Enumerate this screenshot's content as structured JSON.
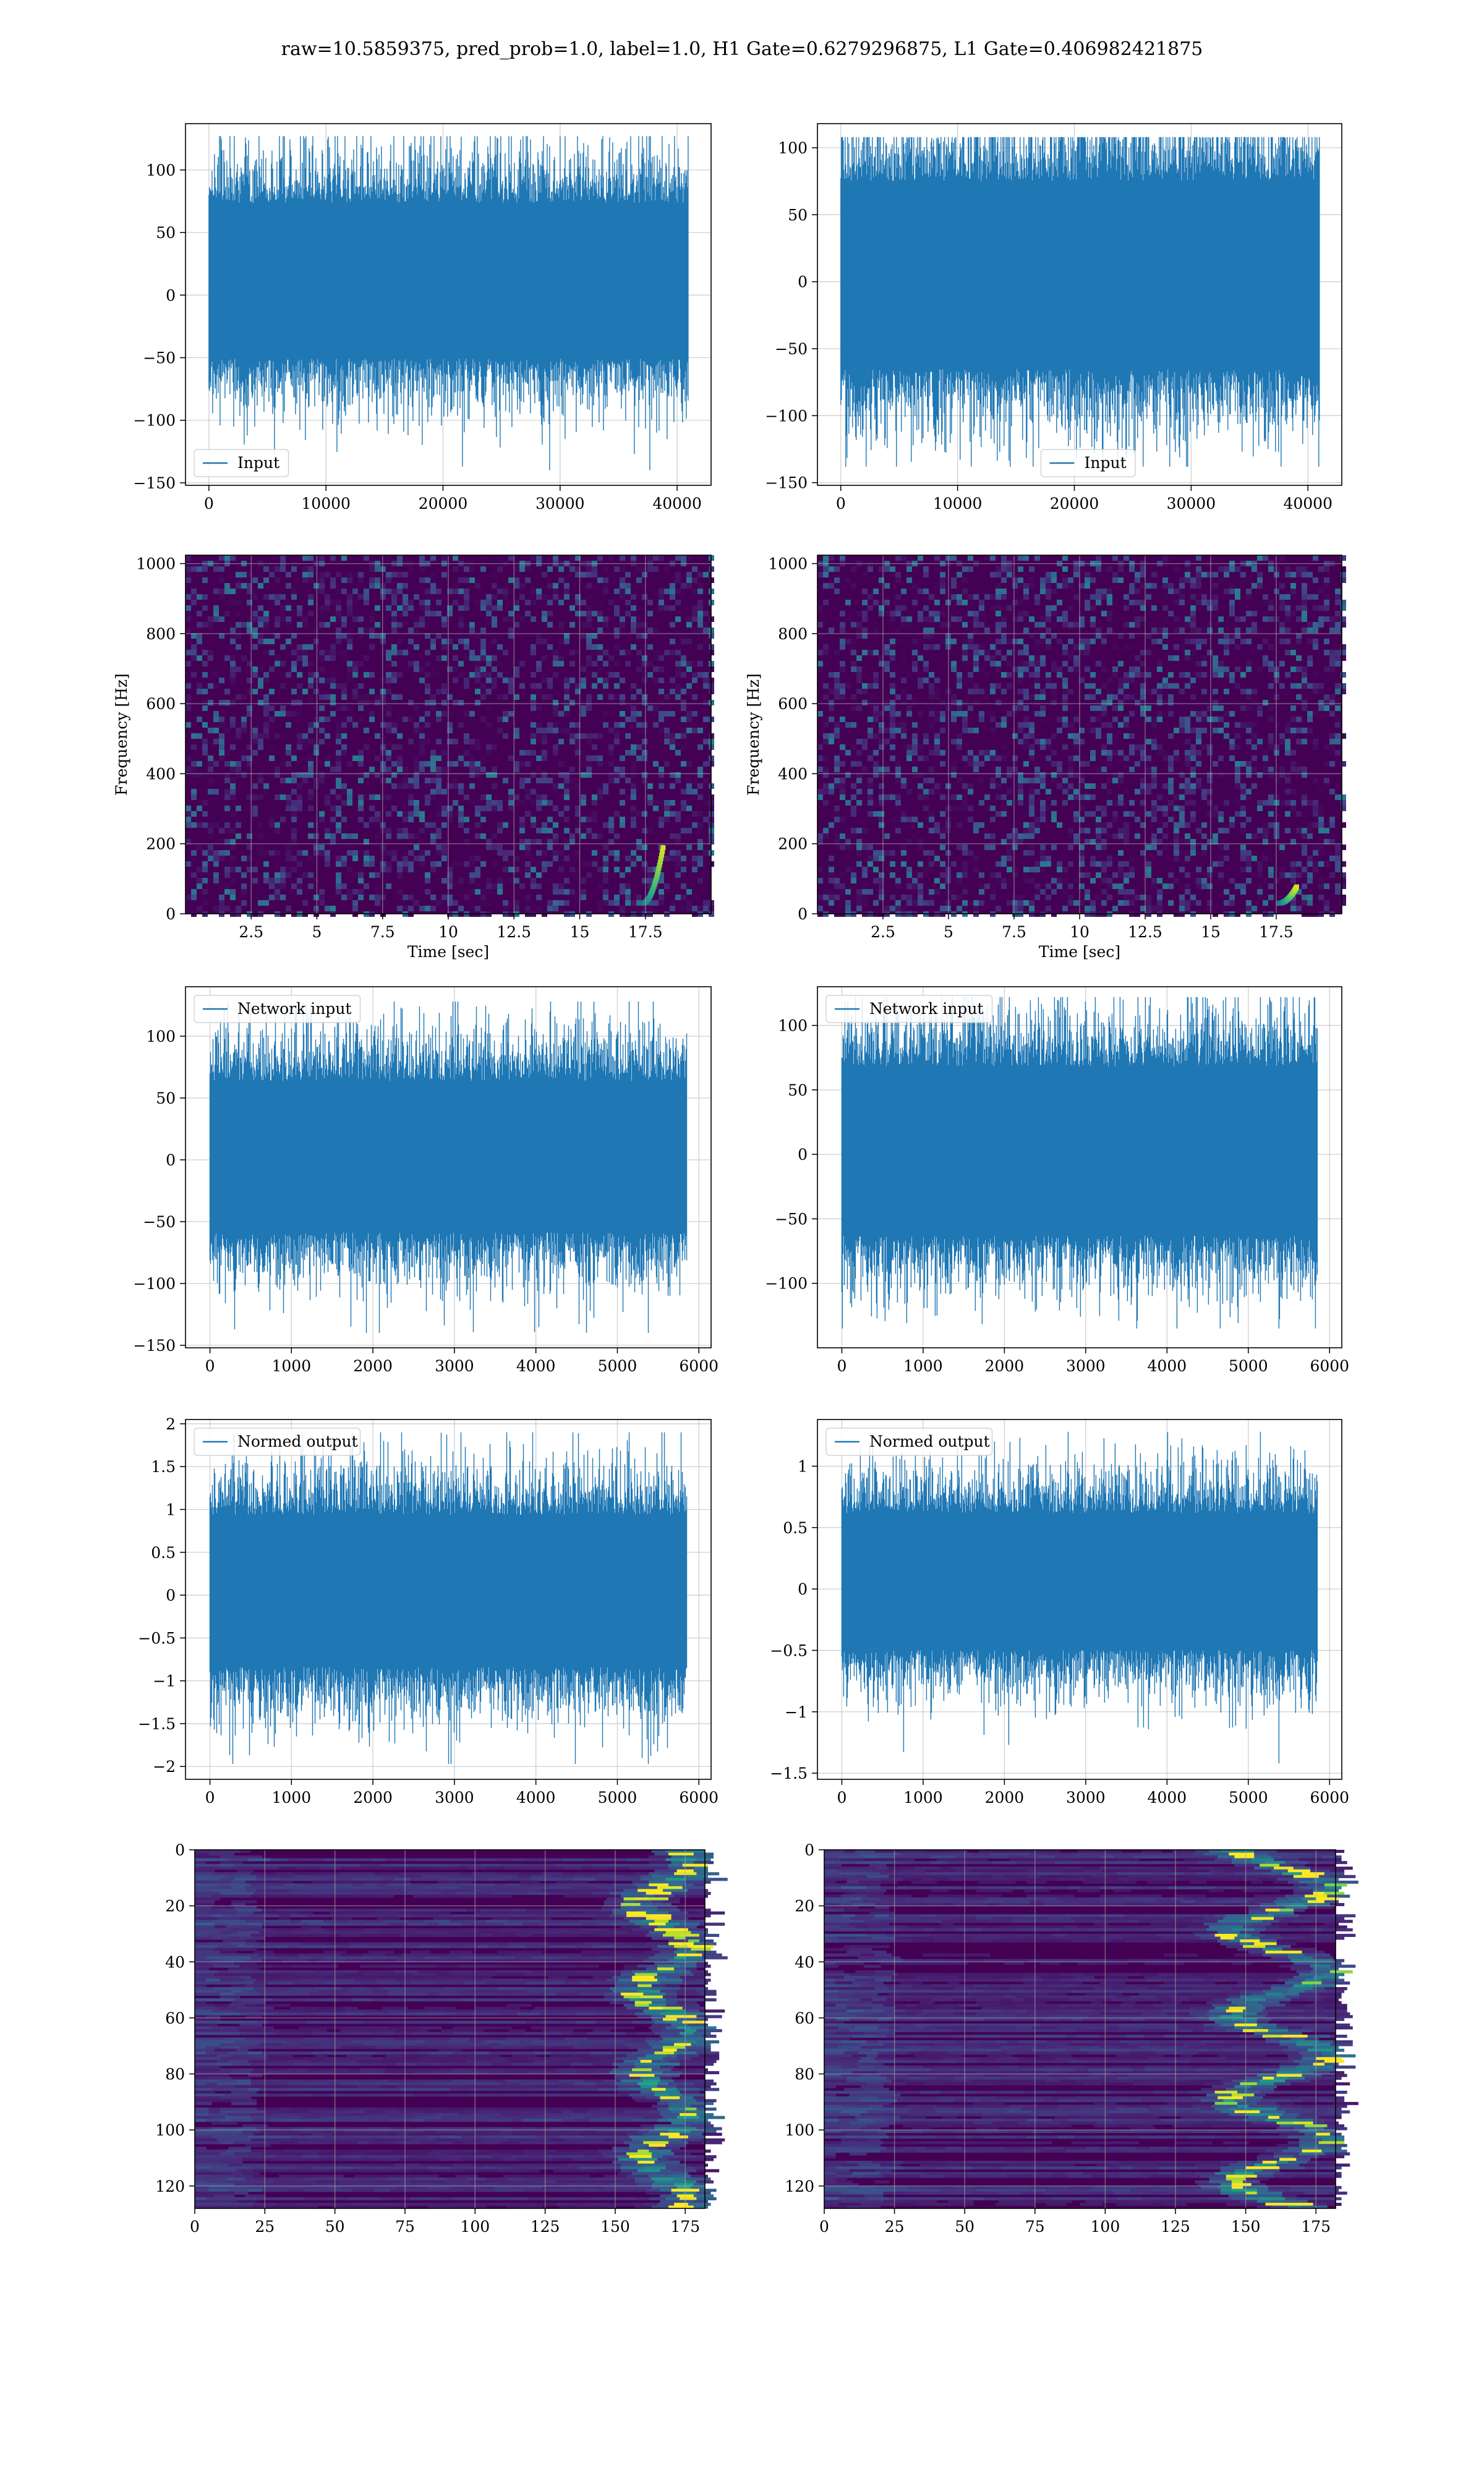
{
  "figure": {
    "suptitle": "raw=10.5859375, pred_prob=1.0, label=1.0, H1 Gate=0.6279296875, L1 Gate=0.406982421875"
  },
  "colors": {
    "line": "#1f77b4",
    "grid": "#b0b0b0",
    "viridis_low": "#440154",
    "viridis_high": "#fde725"
  },
  "chart_data": [
    {
      "id": "input-h1",
      "type": "line",
      "legend": "Input",
      "legend_loc": "lower-left",
      "xlim": [
        -2000,
        42900
      ],
      "ylim": [
        -152,
        137
      ],
      "xticks": [
        0,
        10000,
        20000,
        30000,
        40000
      ],
      "yticks": [
        -150,
        -100,
        -50,
        0,
        50,
        100
      ],
      "n_points": 40960,
      "x_range": [
        0,
        40960
      ],
      "band_99": [
        -62,
        85
      ],
      "peaks": [
        127,
        -140
      ],
      "grid": true
    },
    {
      "id": "input-l1",
      "type": "line",
      "legend": "Input",
      "legend_loc": "lower-right",
      "xlim": [
        -2000,
        42900
      ],
      "ylim": [
        -152,
        118
      ],
      "xticks": [
        0,
        10000,
        20000,
        30000,
        40000
      ],
      "yticks": [
        -150,
        -100,
        -50,
        0,
        50,
        100
      ],
      "n_points": 40960,
      "x_range": [
        0,
        40960
      ],
      "band_99": [
        -78,
        88
      ],
      "peaks": [
        108,
        -138
      ],
      "grid": true
    },
    {
      "id": "spec-h1",
      "type": "heatmap",
      "xlabel": "Time [sec]",
      "ylabel": "Frequency [Hz]",
      "xlim": [
        0,
        20
      ],
      "ylim": [
        0,
        1024
      ],
      "xticks": [
        2.5,
        5.0,
        7.5,
        10.0,
        12.5,
        15.0,
        17.5
      ],
      "yticks": [
        0,
        200,
        400,
        600,
        800,
        1000
      ],
      "colormap": "viridis",
      "chirp": {
        "t_start": 17.4,
        "t_end": 18.2,
        "f_low": 30,
        "f_high": 200
      },
      "grid": true
    },
    {
      "id": "spec-l1",
      "type": "heatmap",
      "xlabel": "Time [sec]",
      "ylabel": "Frequency [Hz]",
      "xlim": [
        0,
        20
      ],
      "ylim": [
        0,
        1024
      ],
      "xticks": [
        2.5,
        5.0,
        7.5,
        10.0,
        12.5,
        15.0,
        17.5
      ],
      "yticks": [
        0,
        200,
        400,
        600,
        800,
        1000
      ],
      "colormap": "viridis",
      "chirp": {
        "t_start": 17.6,
        "t_end": 18.3,
        "f_low": 30,
        "f_high": 80
      },
      "grid": true
    },
    {
      "id": "net-h1",
      "type": "line",
      "legend": "Network input",
      "legend_loc": "upper-left",
      "xlim": [
        -300,
        6150
      ],
      "ylim": [
        -152,
        140
      ],
      "xticks": [
        0,
        1000,
        2000,
        3000,
        4000,
        5000,
        6000
      ],
      "yticks": [
        -150,
        -100,
        -50,
        0,
        50,
        100
      ],
      "n_points": 5851,
      "x_range": [
        0,
        5850
      ],
      "band_99": [
        -70,
        75
      ],
      "peaks": [
        128,
        -140
      ],
      "grid": true
    },
    {
      "id": "net-l1",
      "type": "line",
      "legend": "Network input",
      "legend_loc": "upper-left",
      "xlim": [
        -300,
        6150
      ],
      "ylim": [
        -150,
        130
      ],
      "xticks": [
        0,
        1000,
        2000,
        3000,
        4000,
        5000,
        6000
      ],
      "yticks": [
        -100,
        -50,
        0,
        50,
        100
      ],
      "n_points": 5851,
      "x_range": [
        0,
        5850
      ],
      "band_99": [
        -75,
        80
      ],
      "peaks": [
        122,
        -135
      ],
      "grid": true
    },
    {
      "id": "norm-h1",
      "type": "line",
      "legend": "Normed output",
      "legend_loc": "upper-left",
      "xlim": [
        -300,
        6150
      ],
      "ylim": [
        -2.15,
        2.05
      ],
      "xticks": [
        0,
        1000,
        2000,
        3000,
        4000,
        5000,
        6000
      ],
      "yticks": [
        -2.0,
        -1.5,
        -1.0,
        -0.5,
        0.0,
        0.5,
        1.0,
        1.5,
        2.0
      ],
      "n_points": 5851,
      "x_range": [
        0,
        5850
      ],
      "band_99": [
        -1.0,
        1.1
      ],
      "peaks": [
        1.9,
        -1.97
      ],
      "grid": true
    },
    {
      "id": "norm-l1",
      "type": "line",
      "legend": "Normed output",
      "legend_loc": "upper-left",
      "xlim": [
        -300,
        6150
      ],
      "ylim": [
        -1.55,
        1.38
      ],
      "xticks": [
        0,
        1000,
        2000,
        3000,
        4000,
        5000,
        6000
      ],
      "yticks": [
        -1.5,
        -1.0,
        -0.5,
        0.0,
        0.5,
        1.0
      ],
      "n_points": 5851,
      "x_range": [
        0,
        5850
      ],
      "band_99": [
        -0.6,
        0.72
      ],
      "peaks": [
        1.28,
        -1.42
      ],
      "grid": true
    },
    {
      "id": "feat-h1",
      "type": "heatmap",
      "xlim": [
        0,
        182
      ],
      "ylim": [
        128,
        0
      ],
      "xticks": [
        0,
        25,
        50,
        75,
        100,
        125,
        150,
        175
      ],
      "yticks": [
        0,
        20,
        40,
        60,
        80,
        100,
        120
      ],
      "colormap": "viridis",
      "rows": 128,
      "cols": 182,
      "hot_columns": [
        155,
        175
      ],
      "grid": true
    },
    {
      "id": "feat-l1",
      "type": "heatmap",
      "xlim": [
        0,
        182
      ],
      "ylim": [
        128,
        0
      ],
      "xticks": [
        0,
        25,
        50,
        75,
        100,
        125,
        150,
        175
      ],
      "yticks": [
        0,
        20,
        40,
        60,
        80,
        100,
        120
      ],
      "colormap": "viridis",
      "rows": 128,
      "cols": 182,
      "hot_columns": [
        140,
        178
      ],
      "grid": true
    }
  ]
}
